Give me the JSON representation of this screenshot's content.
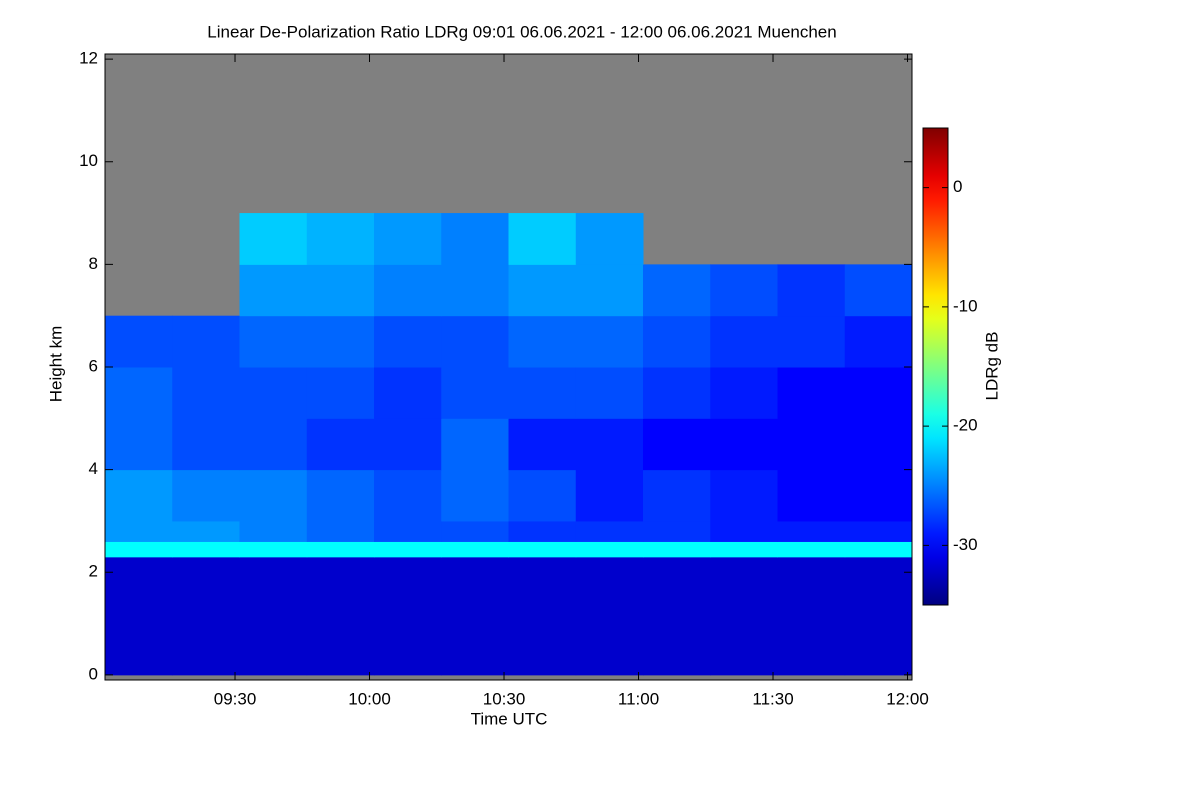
{
  "chart_data": {
    "type": "heatmap",
    "title": "Linear De-Polarization Ratio LDRg   09:01 06.06.2021 - 12:00 06.06.2021 Muenchen",
    "x_label": "Time UTC",
    "y_label": "Height km",
    "colorbar_label": "LDRg dB",
    "colormap": "jet",
    "missing_color": "#808080",
    "x": [
      541,
      556,
      571,
      586,
      601,
      616,
      631,
      646,
      661,
      676,
      691,
      706,
      721
    ],
    "y": [
      0,
      2.3,
      2.6,
      3,
      4,
      5,
      6,
      7,
      8,
      9,
      10,
      12
    ],
    "z": [
      [
        -32,
        -32,
        -32,
        -32,
        -32,
        -32,
        -32,
        -32,
        -32,
        -32,
        -32,
        -32
      ],
      [
        -20,
        -20,
        -20,
        -20,
        -20,
        -20,
        -20,
        -20,
        -20,
        -20,
        -20,
        -20
      ],
      [
        -24,
        -24,
        -25,
        -26,
        -27,
        -27,
        -28,
        -28,
        -28,
        -29,
        -29,
        -29
      ],
      [
        -24,
        -25,
        -25,
        -26,
        -27,
        -26,
        -27,
        -29,
        -28,
        -29,
        -30,
        -30
      ],
      [
        -26,
        -27,
        -27,
        -28,
        -28,
        -26,
        -29,
        -29,
        -30,
        -30,
        -30,
        -30
      ],
      [
        -26,
        -27,
        -27,
        -27,
        -28,
        -27,
        -27,
        -27,
        -28,
        -29,
        -30,
        -30
      ],
      [
        -27,
        -27,
        -26,
        -26,
        -27,
        -27,
        -26,
        -26,
        -27,
        -28,
        -28,
        -29
      ],
      [
        null,
        null,
        -24,
        -24,
        -25,
        -25,
        -24,
        -24,
        -26,
        -27,
        -28,
        -27
      ],
      [
        null,
        null,
        -22,
        -23,
        -24,
        -25,
        -22,
        -24,
        null,
        null,
        null,
        null
      ],
      [
        null,
        null,
        null,
        null,
        null,
        null,
        null,
        null,
        null,
        null,
        null,
        null
      ],
      [
        null,
        null,
        null,
        null,
        null,
        null,
        null,
        null,
        null,
        null,
        null,
        null
      ]
    ],
    "xlim": [
      541,
      721
    ],
    "ylim": [
      -0.1,
      12.1
    ],
    "clim": [
      -35,
      5
    ],
    "xticks": [
      {
        "value": 570,
        "label": "09:30"
      },
      {
        "value": 600,
        "label": "10:00"
      },
      {
        "value": 630,
        "label": "10:30"
      },
      {
        "value": 660,
        "label": "11:00"
      },
      {
        "value": 690,
        "label": "11:30"
      },
      {
        "value": 720,
        "label": "12:00"
      }
    ],
    "yticks": [
      0,
      2,
      4,
      6,
      8,
      10,
      12
    ],
    "cticks": [
      -30,
      -20,
      -10,
      0
    ]
  }
}
